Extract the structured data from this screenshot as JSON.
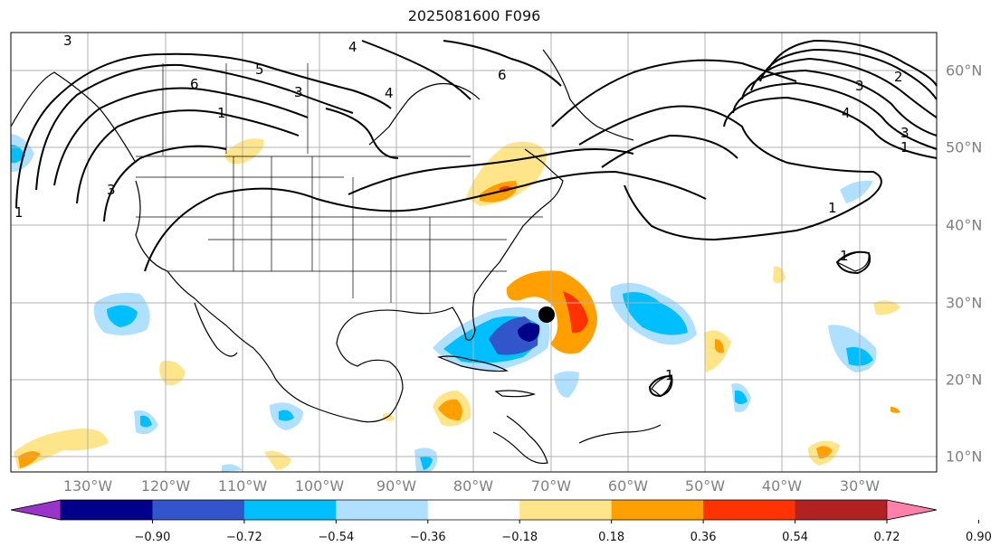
{
  "title": "2025081600 F096",
  "longitude_labels": [
    "130°W",
    "120°W",
    "110°W",
    "100°W",
    "90°W",
    "80°W",
    "70°W",
    "60°W",
    "50°W",
    "40°W",
    "30°W"
  ],
  "latitude_labels": [
    "60°N",
    "50°N",
    "40°N",
    "30°N",
    "20°N",
    "10°N"
  ],
  "contour_labels": [
    "1",
    "2",
    "3",
    "4",
    "5",
    "6"
  ],
  "colorbar": {
    "ticks": [
      "−0.90",
      "−0.72",
      "−0.54",
      "−0.36",
      "−0.18",
      "0.18",
      "0.36",
      "0.54",
      "0.72",
      "0.90"
    ],
    "colors": [
      "#9933cc",
      "#00008b",
      "#3355cc",
      "#00bfff",
      "#b0e0ff",
      "#ffffff",
      "#ffe58a",
      "#ffa000",
      "#ff3300",
      "#b22222",
      "#ff80aa"
    ]
  },
  "colors": {
    "gridline": "#b0b0b0",
    "coastline": "#000000",
    "marker": "#000000"
  },
  "map_features": [
    "coastlines",
    "state-borders",
    "pressure-contours",
    "shaded-anomalies",
    "storm-center-marker"
  ]
}
